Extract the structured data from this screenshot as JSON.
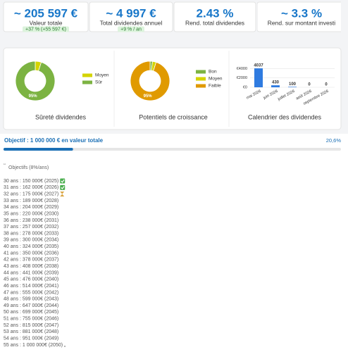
{
  "kpis": [
    {
      "value": "~ 205 597 €",
      "label": "Valeur totale",
      "badge": "+37 % (+55 597 €)"
    },
    {
      "value": "~ 4 997 €",
      "label": "Total dividendes annuel",
      "badge": "+9 % / an"
    },
    {
      "value": "2.43 %",
      "label": "Rend. total dividendes"
    },
    {
      "value": "~ 3.3 %",
      "label": "Rend. sur montant investi"
    }
  ],
  "charts": [
    {
      "type": "pie",
      "title": "Sûreté dividendes",
      "segments": [
        {
          "name": "Moyen",
          "value": 5,
          "color": "#d4d400"
        },
        {
          "name": "Sûr",
          "value": 95,
          "color": "#7cb342",
          "label": "95%"
        }
      ]
    },
    {
      "type": "pie",
      "title": "Potentiels de croissance",
      "segments": [
        {
          "name": "Bon",
          "value": 2,
          "color": "#7cb342"
        },
        {
          "name": "Moyen",
          "value": 3,
          "color": "#d4d400"
        },
        {
          "name": "Faible",
          "value": 95,
          "color": "#e09a00",
          "label": "95%"
        }
      ]
    },
    {
      "type": "bar",
      "title": "Calendrier des dividendes",
      "categories": [
        "mai 2026",
        "juin 2026",
        "juillet 2026",
        "août 2026",
        "septembre 2026"
      ],
      "values": [
        4037,
        430,
        100,
        0,
        0
      ],
      "color": "#2f7be0",
      "ylim": [
        0,
        4200
      ],
      "yticks": [
        {
          "value": 0,
          "label": "€0"
        },
        {
          "value": 2000,
          "label": "€2000"
        },
        {
          "value": 4000,
          "label": "€4000"
        }
      ]
    }
  ],
  "progress": {
    "label": "Objectif : 1 000 000 € en valeur totale",
    "value": 20.6,
    "value_label": "20,6%",
    "max": 100
  },
  "goals": {
    "quote": "“",
    "heading": "Objectifs (8%/ans)",
    "lines": [
      "30 ans : 150 000€ (2025)",
      "31 ans : 162 000€ (2026)",
      "32 ans : 175 000€ (2027)",
      "33 ans : 189 000€ (2028)",
      "34 ans : 204 000€ (2029)",
      "35 ans : 220 000€ (2030)",
      "36 ans : 238 000€ (2031)",
      "37 ans : 257 000€ (2032)",
      "38 ans : 278 000€ (2033)",
      "39 ans : 300 000€ (2034)",
      "40 ans : 324 000€ (2035)",
      "41 ans : 350 000€ (2036)",
      "42 ans : 378 000€ (2037)",
      "43 ans : 408 000€ (2038)",
      "44 ans : 441 000€ (2039)",
      "45 ans : 476 000€ (2040)",
      "46 ans : 514 000€ (2041)",
      "47 ans : 555 000€ (2042)",
      "48 ans : 599 000€ (2043)",
      "49 ans : 647 000€ (2044)",
      "50 ans : 699 000€ (2045)",
      "51 ans : 755 000€ (2046)",
      "52 ans : 815 000€ (2047)",
      "53 ans : 881 000€ (2048)",
      "54 ans : 951 000€ (2049)",
      "55 ans : 1 000 000€ (2050) „"
    ]
  }
}
